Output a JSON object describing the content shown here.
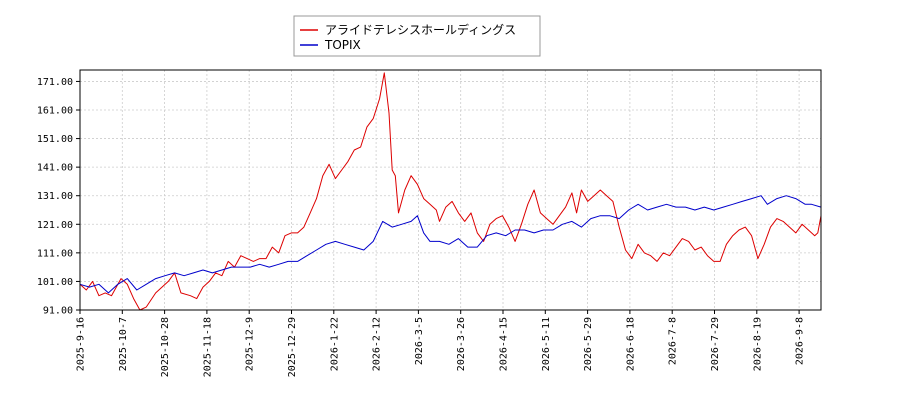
{
  "chart_data": {
    "type": "line",
    "title": "",
    "xlabel": "",
    "ylabel": "",
    "ylim": [
      91,
      175
    ],
    "y_ticks": [
      "91.00",
      "101.00",
      "111.00",
      "121.00",
      "131.00",
      "141.00",
      "151.00",
      "161.00",
      "171.00"
    ],
    "x_ticks": [
      "2025-9-16",
      "2025-10-7",
      "2025-10-28",
      "2025-11-18",
      "2025-12-9",
      "2025-12-29",
      "2026-1-22",
      "2026-2-12",
      "2026-3-5",
      "2026-3-26",
      "2026-4-15",
      "2026-5-11",
      "2026-5-29",
      "2026-6-18",
      "2026-7-8",
      "2026-7-29",
      "2026-8-19",
      "2026-9-8"
    ],
    "grid": true,
    "legend_position": "top-center",
    "series": [
      {
        "name": "アライドテレシスホールディングス",
        "color": "#dd0000",
        "anchors": [
          [
            0,
            100
          ],
          [
            2,
            98
          ],
          [
            4,
            101
          ],
          [
            6,
            96
          ],
          [
            8,
            97
          ],
          [
            10,
            96
          ],
          [
            13,
            102
          ],
          [
            15,
            100
          ],
          [
            17,
            95
          ],
          [
            19,
            91
          ],
          [
            21,
            92
          ],
          [
            24,
            97
          ],
          [
            26,
            99
          ],
          [
            28,
            101
          ],
          [
            30,
            104
          ],
          [
            32,
            97
          ],
          [
            35,
            96
          ],
          [
            37,
            95
          ],
          [
            39,
            99
          ],
          [
            41,
            101
          ],
          [
            43,
            104
          ],
          [
            45,
            103
          ],
          [
            47,
            108
          ],
          [
            49,
            106
          ],
          [
            51,
            110
          ],
          [
            53,
            109
          ],
          [
            55,
            108
          ],
          [
            57,
            109
          ],
          [
            59,
            109
          ],
          [
            61,
            113
          ],
          [
            63,
            111
          ],
          [
            65,
            117
          ],
          [
            67,
            118
          ],
          [
            69,
            118
          ],
          [
            71,
            120
          ],
          [
            73,
            125
          ],
          [
            75,
            130
          ],
          [
            77,
            138
          ],
          [
            79,
            142
          ],
          [
            81,
            137
          ],
          [
            83,
            140
          ],
          [
            85,
            143
          ],
          [
            87,
            147
          ],
          [
            89,
            148
          ],
          [
            91,
            155
          ],
          [
            93,
            158
          ],
          [
            95,
            165
          ],
          [
            96.5,
            174
          ],
          [
            98,
            160
          ],
          [
            99,
            140
          ],
          [
            100,
            138
          ],
          [
            101,
            125
          ],
          [
            103,
            133
          ],
          [
            105,
            138
          ],
          [
            107,
            135
          ],
          [
            109,
            130
          ],
          [
            111,
            128
          ],
          [
            113,
            126
          ],
          [
            114,
            122
          ],
          [
            116,
            127
          ],
          [
            118,
            129
          ],
          [
            120,
            125
          ],
          [
            122,
            122
          ],
          [
            124,
            125
          ],
          [
            126,
            118
          ],
          [
            128,
            115
          ],
          [
            130,
            121
          ],
          [
            132,
            123
          ],
          [
            134,
            124
          ],
          [
            136,
            120
          ],
          [
            138,
            115
          ],
          [
            140,
            121
          ],
          [
            142,
            128
          ],
          [
            144,
            133
          ],
          [
            146,
            125
          ],
          [
            148,
            123
          ],
          [
            150,
            121
          ],
          [
            152,
            124
          ],
          [
            154,
            127
          ],
          [
            156,
            132
          ],
          [
            157.5,
            125
          ],
          [
            159,
            133
          ],
          [
            161,
            129
          ],
          [
            163,
            131
          ],
          [
            165,
            133
          ],
          [
            167,
            131
          ],
          [
            169,
            129
          ],
          [
            171,
            120
          ],
          [
            173,
            112
          ],
          [
            175,
            109
          ],
          [
            177,
            114
          ],
          [
            179,
            111
          ],
          [
            181,
            110
          ],
          [
            183,
            108
          ],
          [
            185,
            111
          ],
          [
            187,
            110
          ],
          [
            189,
            113
          ],
          [
            191,
            116
          ],
          [
            193,
            115
          ],
          [
            195,
            112
          ],
          [
            197,
            113
          ],
          [
            199,
            110
          ],
          [
            201,
            108
          ],
          [
            203,
            108
          ],
          [
            205,
            114
          ],
          [
            207,
            117
          ],
          [
            209,
            119
          ],
          [
            211,
            120
          ],
          [
            213,
            117
          ],
          [
            215,
            109
          ],
          [
            217,
            114
          ],
          [
            219,
            120
          ],
          [
            221,
            123
          ],
          [
            223,
            122
          ],
          [
            225,
            120
          ],
          [
            227,
            118
          ],
          [
            229,
            121
          ],
          [
            231,
            119
          ],
          [
            233,
            117
          ],
          [
            234,
            118
          ],
          [
            235,
            124
          ]
        ]
      },
      {
        "name": "TOPIX",
        "color": "#0000cc",
        "anchors": [
          [
            0,
            100
          ],
          [
            3,
            99
          ],
          [
            6,
            100
          ],
          [
            9,
            97
          ],
          [
            12,
            100
          ],
          [
            15,
            102
          ],
          [
            18,
            98
          ],
          [
            21,
            100
          ],
          [
            24,
            102
          ],
          [
            27,
            103
          ],
          [
            30,
            104
          ],
          [
            33,
            103
          ],
          [
            36,
            104
          ],
          [
            39,
            105
          ],
          [
            42,
            104
          ],
          [
            45,
            105
          ],
          [
            48,
            106
          ],
          [
            51,
            106
          ],
          [
            54,
            106
          ],
          [
            57,
            107
          ],
          [
            60,
            106
          ],
          [
            63,
            107
          ],
          [
            66,
            108
          ],
          [
            69,
            108
          ],
          [
            72,
            110
          ],
          [
            75,
            112
          ],
          [
            78,
            114
          ],
          [
            81,
            115
          ],
          [
            84,
            114
          ],
          [
            87,
            113
          ],
          [
            90,
            112
          ],
          [
            93,
            115
          ],
          [
            96,
            122
          ],
          [
            99,
            120
          ],
          [
            102,
            121
          ],
          [
            105,
            122
          ],
          [
            107,
            124
          ],
          [
            109,
            118
          ],
          [
            111,
            115
          ],
          [
            114,
            115
          ],
          [
            117,
            114
          ],
          [
            120,
            116
          ],
          [
            123,
            113
          ],
          [
            126,
            113
          ],
          [
            129,
            117
          ],
          [
            132,
            118
          ],
          [
            135,
            117
          ],
          [
            138,
            119
          ],
          [
            141,
            119
          ],
          [
            144,
            118
          ],
          [
            147,
            119
          ],
          [
            150,
            119
          ],
          [
            153,
            121
          ],
          [
            156,
            122
          ],
          [
            159,
            120
          ],
          [
            162,
            123
          ],
          [
            165,
            124
          ],
          [
            168,
            124
          ],
          [
            171,
            123
          ],
          [
            174,
            126
          ],
          [
            177,
            128
          ],
          [
            180,
            126
          ],
          [
            183,
            127
          ],
          [
            186,
            128
          ],
          [
            189,
            127
          ],
          [
            192,
            127
          ],
          [
            195,
            126
          ],
          [
            198,
            127
          ],
          [
            201,
            126
          ],
          [
            204,
            127
          ],
          [
            207,
            128
          ],
          [
            210,
            129
          ],
          [
            213,
            130
          ],
          [
            216,
            131
          ],
          [
            218,
            128
          ],
          [
            221,
            130
          ],
          [
            224,
            131
          ],
          [
            227,
            130
          ],
          [
            230,
            128
          ],
          [
            232,
            128
          ],
          [
            235,
            127
          ]
        ]
      }
    ]
  }
}
